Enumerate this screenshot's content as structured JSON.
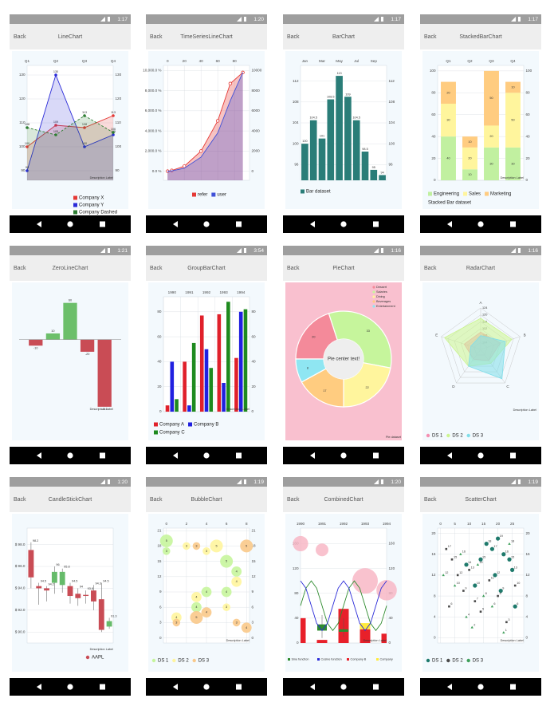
{
  "back_label": "Back",
  "screens": [
    {
      "time": "1:17",
      "title": "LineChart",
      "chart": {
        "type": "line",
        "categories": [
          "Q1",
          "Q2",
          "Q3",
          "Q4"
        ],
        "ylim": [
          86,
          134
        ],
        "yticks": [
          90,
          100,
          110,
          120,
          130
        ],
        "grid": true,
        "mirror_y_axis": true,
        "series": [
          {
            "name": "Company X",
            "color": "#e53935",
            "values": [
              100,
              109,
              108,
              113
            ]
          },
          {
            "name": "Company Y",
            "color": "#2a2ad8",
            "values": [
              90,
              130,
              100,
              105
            ]
          },
          {
            "name": "Company Dashed",
            "color": "#2e7d32",
            "dashed": true,
            "values": [
              108,
              105,
              113,
              106
            ]
          }
        ],
        "description": "Description Label"
      }
    },
    {
      "time": "1:20",
      "title": "TimeSeriesLineChart",
      "chart": {
        "type": "area",
        "x": [
          0,
          5,
          20,
          40,
          60,
          75,
          90
        ],
        "xlim": [
          -5,
          98
        ],
        "xticks": [
          0,
          20,
          40,
          60,
          80
        ],
        "ylim": [
          -900,
          10500
        ],
        "yticks": [
          {
            "value": 0,
            "label": "0.0 %"
          },
          {
            "value": 2000,
            "label": "2,000.0 %"
          },
          {
            "value": 4000,
            "label": "4,000.0 %"
          },
          {
            "value": 6000,
            "label": "6,000.0 %"
          },
          {
            "value": 8000,
            "label": "8,000.0 %"
          },
          {
            "value": 10000,
            "label": "10,000.0 %"
          }
        ],
        "y2ticks": [
          0,
          2000,
          4000,
          6000,
          8000,
          10000
        ],
        "grid": true,
        "series": [
          {
            "name": "refer",
            "color": "#e53935",
            "show_points": true,
            "values": [
              0,
              80,
              500,
              2000,
              5000,
              8700,
              9800
            ]
          },
          {
            "name": "user",
            "color": "#3f51d8",
            "values": [
              0,
              40,
              300,
              1400,
              3800,
              7000,
              9800
            ]
          }
        ]
      }
    },
    {
      "time": "1:17",
      "title": "BarChart",
      "chart": {
        "type": "bar",
        "categories": [
          "Jan",
          null,
          "Mar",
          null,
          "May",
          null,
          "Jul",
          null,
          "Sep",
          null
        ],
        "values": [
          100,
          104.5,
          101,
          108.5,
          113,
          109,
          104.5,
          98.5,
          95,
          94
        ],
        "color": "#2a7d78",
        "ylim": [
          93,
          115
        ],
        "yticks": [
          96,
          100,
          104,
          108,
          112
        ],
        "grid": true,
        "mirror_y_axis": true,
        "label": "Bar dataset"
      }
    },
    {
      "time": "1:17",
      "title": "StackedBarChart",
      "chart": {
        "type": "stacked_bar",
        "categories": [
          "Q1",
          "Q2",
          "Q3",
          "Q4"
        ],
        "ylim": [
          0,
          105
        ],
        "yticks": [
          0,
          20,
          40,
          60,
          80,
          100
        ],
        "grid": true,
        "mirror_y_axis": true,
        "series": [
          {
            "name": "Engineering",
            "color": "#c1f0a0",
            "values": [
              40,
              10,
              30,
              30
            ]
          },
          {
            "name": "Sales",
            "color": "#fff59d",
            "values": [
              30,
              20,
              20,
              50
            ]
          },
          {
            "name": "Marketing",
            "color": "#ffcc80",
            "values": [
              20,
              10,
              50,
              10
            ]
          }
        ],
        "label": "Stacked Bar dataset",
        "description": "Description Label"
      }
    },
    {
      "time": "1:21",
      "title": "ZeroLineChart",
      "chart": {
        "type": "bar",
        "values": [
          -10,
          10,
          60,
          -20,
          -110
        ],
        "positive_color": "#6cbf6a",
        "negative_color": "#c94c55",
        "ylim": [
          -118,
          70
        ],
        "zero_line": true,
        "description": "Description Label"
      }
    },
    {
      "time": "3:54",
      "title": "GroupBarChart",
      "chart": {
        "type": "grouped_bar",
        "categories": [
          "1990",
          "1991",
          "1992",
          "1993",
          "1994"
        ],
        "ylim": [
          0,
          92
        ],
        "yticks": [
          0,
          20,
          40,
          60,
          80
        ],
        "grid": true,
        "mirror_y_axis": true,
        "series": [
          {
            "name": "Company A",
            "color": "#e0202a",
            "values": [
              5,
              40,
              77,
              78,
              43
            ]
          },
          {
            "name": "Company B",
            "color": "#2020e0",
            "values": [
              40,
              5,
              50,
              23,
              80
            ]
          },
          {
            "name": "Company C",
            "color": "#1e8a1e",
            "values": [
              10,
              55,
              35,
              88,
              82
            ]
          }
        ],
        "description": "Description Label"
      }
    },
    {
      "time": "1:16",
      "title": "PieChart",
      "chart": {
        "type": "pie",
        "background": "#f9c0cf",
        "center_text": "Pie center text!",
        "categories": [
          "Dessert",
          "Salaries",
          "Dining",
          "Beverages",
          "Entertainment"
        ],
        "values": [
          20,
          33,
          22,
          17,
          8
        ],
        "colors": [
          "#f48a9a",
          "#c6f59c",
          "#fff59d",
          "#ffcc80",
          "#8fe6f2"
        ],
        "description": "Pie dataset"
      }
    },
    {
      "time": "1:16",
      "title": "RadarChart",
      "chart": {
        "type": "radar",
        "axes": [
          "A",
          "B",
          "C",
          "D",
          "E"
        ],
        "ylim": [
          100,
          124
        ],
        "yticks": [
          104,
          108,
          112,
          116,
          120,
          124
        ],
        "series": [
          {
            "name": "DS 1",
            "color": "#f48fb1",
            "values": [
              110,
              112,
              108,
              107,
              110
            ]
          },
          {
            "name": "DS 2",
            "color": "#ccf590",
            "values": [
              118,
              119,
              110,
              112,
              122
            ]
          },
          {
            "name": "DS 3",
            "color": "#80deea",
            "values": [
              108,
              115,
              121,
              112,
              106
            ]
          }
        ],
        "description": "Description Label"
      }
    },
    {
      "time": "1:20",
      "title": "CandleStickChart",
      "chart": {
        "type": "candlestick",
        "ylim": [
          89,
          99.5
        ],
        "yticks": [
          {
            "value": 90,
            "label": "$ 90.0"
          },
          {
            "value": 92,
            "label": "$ 92.0"
          },
          {
            "value": 94,
            "label": "$ 94.0"
          },
          {
            "value": 96,
            "label": "$ 96.0"
          },
          {
            "value": 98,
            "label": "$ 98.0"
          }
        ],
        "open": [
          97.5,
          94.2,
          94.0,
          94.5,
          94.3,
          94.2,
          93.5,
          93.4,
          93.8,
          93.0,
          90.5
        ],
        "close": [
          95.0,
          94.0,
          93.8,
          95.5,
          95.5,
          93.3,
          93.1,
          93.3,
          92.8,
          90.2,
          91.0
        ],
        "high": [
          98.2,
          94.5,
          94.2,
          96.0,
          95.8,
          94.5,
          94.0,
          93.8,
          94.3,
          94.5,
          91.3
        ],
        "low": [
          94.0,
          92.5,
          92.8,
          93.5,
          93.6,
          92.6,
          92.4,
          92.6,
          92.0,
          90.0,
          90.3
        ],
        "increasing_color": "#66bb6a",
        "decreasing_color": "#c94c55",
        "grid": true,
        "label": "AAPL",
        "description": "Description Label"
      }
    },
    {
      "time": "1:19",
      "title": "BubbleChart",
      "chart": {
        "type": "bubble",
        "xlim": [
          -0.3,
          8.3
        ],
        "xticks": [
          0,
          2,
          4,
          6,
          8
        ],
        "ylim": [
          -1,
          21.5
        ],
        "yticks": [
          0,
          3,
          6,
          9,
          12,
          15,
          18,
          21
        ],
        "grid": true,
        "mirror_y_axis": true,
        "series": [
          {
            "name": "DS 1",
            "color": "#c6f59c",
            "x": [
              0,
              0,
              3,
              4,
              6,
              6,
              7
            ],
            "y": [
              19,
              17,
              6,
              9,
              15,
              9,
              13
            ],
            "size": [
              5,
              3,
              4,
              4,
              5,
              4,
              4
            ]
          },
          {
            "name": "DS 2",
            "color": "#fff59d",
            "x": [
              2,
              3,
              4,
              5,
              6,
              7,
              1
            ],
            "y": [
              18,
              8,
              17,
              18,
              6,
              11,
              4
            ],
            "size": [
              3,
              4,
              3,
              5,
              3,
              4,
              4
            ]
          },
          {
            "name": "DS 3",
            "color": "#f9c98a",
            "x": [
              1,
              3,
              4,
              3,
              8,
              8,
              7
            ],
            "y": [
              3,
              4,
              5,
              18,
              18,
              2,
              3
            ],
            "size": [
              3,
              5,
              4,
              3,
              5,
              4,
              3
            ]
          }
        ],
        "description": "Description Label"
      }
    },
    {
      "time": "1:20",
      "title": "CombinedChart",
      "chart": {
        "type": "combined",
        "categories": [
          "1990",
          "1991",
          "1992",
          "1993",
          "1994"
        ],
        "ylim": [
          0,
          185
        ],
        "yticks": [
          0,
          40,
          80,
          120,
          160
        ],
        "grid": true,
        "mirror_y_axis": true,
        "line_x": [
          0,
          0.25,
          0.5,
          0.75,
          1,
          1.25,
          1.5,
          1.75,
          2,
          2.25,
          2.5,
          2.75,
          3,
          3.25,
          3.5,
          3.75,
          4
        ],
        "lines": [
          {
            "name": "Sine function",
            "color": "#2e8b2e",
            "values": [
              60,
              88.3,
              100,
              88.3,
              60,
              31.7,
              20,
              31.7,
              60,
              88.3,
              100,
              88.3,
              60,
              31.7,
              20,
              31.7,
              60
            ]
          },
          {
            "name": "Cosine function",
            "color": "#2a2ad8",
            "values": [
              100,
              88.3,
              60,
              31.7,
              20,
              31.7,
              60,
              88.3,
              100,
              88.3,
              60,
              31.7,
              20,
              31.7,
              60,
              88.3,
              100
            ]
          }
        ],
        "bars": [
          {
            "name": "Company B",
            "color": "#e8202a",
            "values": [
              40,
              5,
              55,
              22,
              15
            ]
          },
          {
            "name": "Company",
            "color": "#ffeb3b",
            "values": [
              0,
              0,
              0,
              10,
              0
            ]
          }
        ],
        "bubbles": {
          "color": "#f7b3c2",
          "x": [
            0,
            1,
            3,
            4
          ],
          "y": [
            160,
            150,
            100,
            85
          ],
          "size": [
            6,
            5,
            10,
            8
          ]
        },
        "candles": {
          "color": "#2e8b2e",
          "x": [
            1,
            2
          ],
          "open": [
            30,
            22
          ],
          "close": [
            20,
            18
          ],
          "high": [
            45,
            40
          ],
          "low": [
            8,
            10
          ]
        },
        "description": "Description Label"
      }
    },
    {
      "time": "1:19",
      "title": "ScatterChart",
      "chart": {
        "type": "scatter",
        "xlim": [
          -1,
          29
        ],
        "xticks": [
          0,
          5,
          10,
          15,
          20,
          25
        ],
        "ylim": [
          -1,
          21
        ],
        "yticks": [
          0,
          4,
          8,
          12,
          16,
          20
        ],
        "grid": true,
        "mirror_y_axis": true,
        "series": [
          {
            "name": "DS 1",
            "color": "#1f7a6c",
            "shape": "circle",
            "x": [
              16,
              18,
              20,
              22,
              24,
              25,
              14,
              12,
              21,
              19,
              26,
              9
            ],
            "y": [
              18,
              17,
              19,
              16,
              15,
              13,
              15,
              10,
              9,
              12,
              6,
              14
            ]
          },
          {
            "name": "DS 2",
            "color": "#4a4a4a",
            "shape": "square",
            "x": [
              2,
              4,
              6,
              8,
              10,
              12,
              14,
              17,
              20,
              23,
              26,
              3
            ],
            "y": [
              17,
              15,
              12,
              9,
              13,
              7,
              5,
              11,
              8,
              3,
              10,
              6
            ]
          },
          {
            "name": "DS 3",
            "color": "#3f9f5a",
            "shape": "triangle",
            "x": [
              1,
              5,
              7,
              9,
              11,
              13,
              15,
              18,
              22,
              24
            ],
            "y": [
              12,
              10,
              16,
              4,
              2,
              14,
              8,
              6,
              1,
              18
            ]
          }
        ],
        "description": "Description Label"
      }
    }
  ]
}
